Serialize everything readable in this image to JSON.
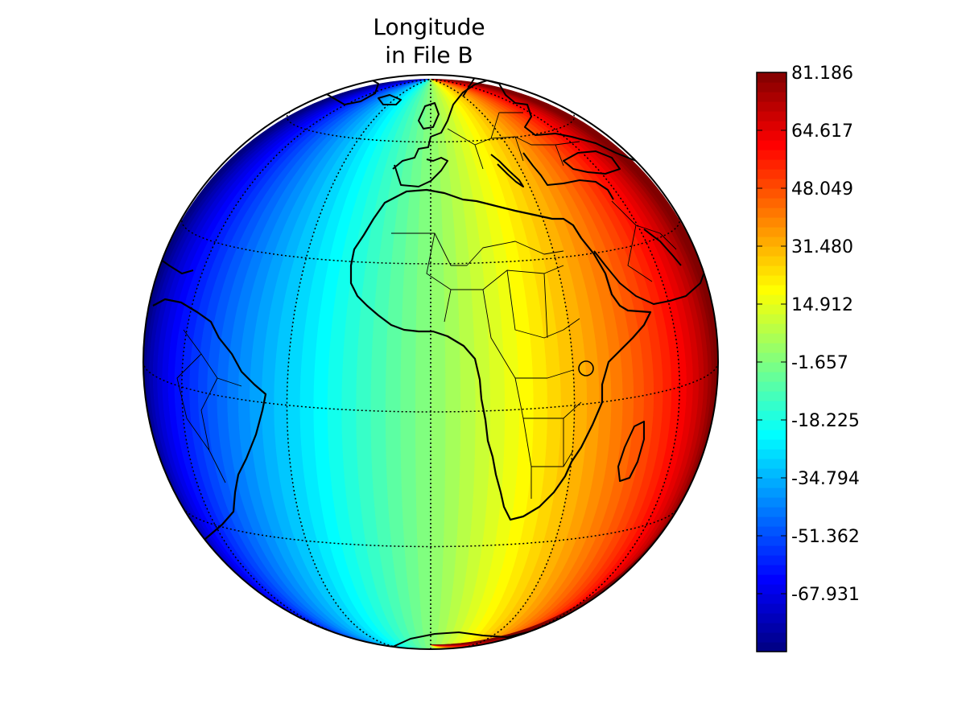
{
  "figure": {
    "title_line1": "Longitude",
    "title_line2": "in File B"
  },
  "map": {
    "projection": "orthographic",
    "center_lon": 0,
    "center_lat": 10,
    "fill_variable": "longitude",
    "colormap": "jet",
    "value_range": [
      -90,
      90
    ],
    "graticule": {
      "meridians": [
        -60,
        -30,
        0,
        30,
        60
      ],
      "parallels": [
        -30,
        0,
        30,
        60
      ],
      "style": "dotted"
    }
  },
  "colorbar": {
    "min": -84.5,
    "max": 81.186,
    "ticks": [
      {
        "value": 81.186,
        "label": "81.186"
      },
      {
        "value": 64.617,
        "label": "64.617"
      },
      {
        "value": 48.049,
        "label": "48.049"
      },
      {
        "value": 31.48,
        "label": "31.480"
      },
      {
        "value": 14.912,
        "label": "14.912"
      },
      {
        "value": -1.657,
        "label": "-1.657"
      },
      {
        "value": -18.225,
        "label": "-18.225"
      },
      {
        "value": -34.794,
        "label": "-34.794"
      },
      {
        "value": -51.362,
        "label": "-51.362"
      },
      {
        "value": -67.931,
        "label": "-67.931"
      }
    ]
  }
}
